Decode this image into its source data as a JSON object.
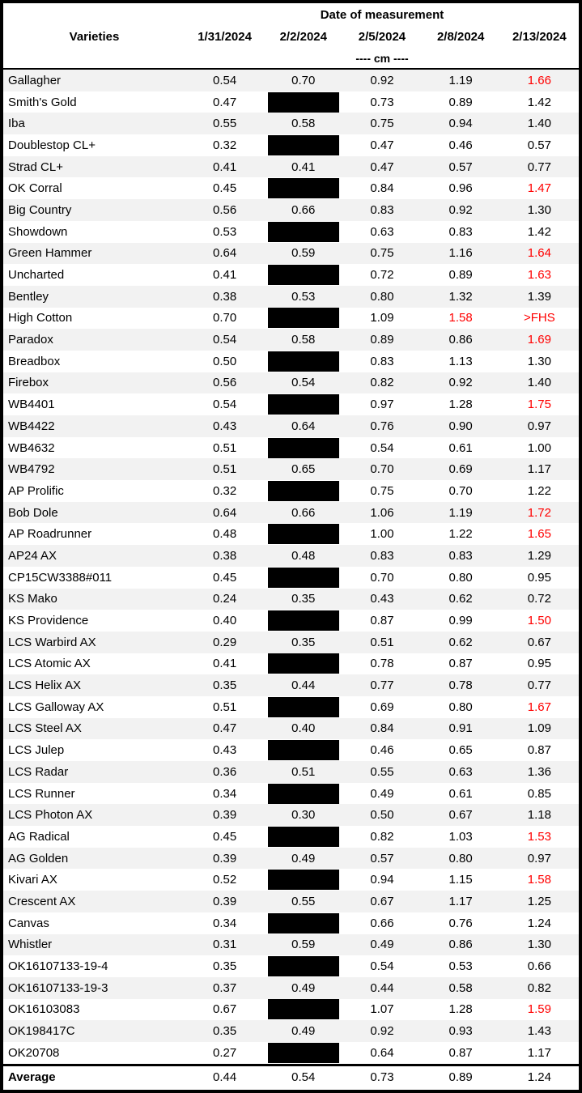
{
  "header": {
    "varieties_label": "Varieties"
  },
  "colors": {
    "red": "#ff0000",
    "stripe": "#f2f2f2",
    "border": "#000000",
    "redaction": "#000000"
  },
  "chart_data": {
    "type": "table",
    "title": "Date of measurement",
    "unit": "---- cm ----",
    "columns": [
      "Varieties",
      "1/31/2024",
      "2/2/2024",
      "2/5/2024",
      "2/8/2024",
      "2/13/2024"
    ],
    "rows": [
      {
        "variety": "Gallagher",
        "values": [
          "0.54",
          "0.70",
          "0.92",
          "1.19",
          "1.66"
        ],
        "red": [
          4
        ],
        "redacted": []
      },
      {
        "variety": "Smith's Gold",
        "values": [
          "0.47",
          null,
          "0.73",
          "0.89",
          "1.42"
        ],
        "red": [],
        "redacted": [
          1
        ]
      },
      {
        "variety": "Iba",
        "values": [
          "0.55",
          "0.58",
          "0.75",
          "0.94",
          "1.40"
        ],
        "red": [],
        "redacted": []
      },
      {
        "variety": "Doublestop CL+",
        "values": [
          "0.32",
          null,
          "0.47",
          "0.46",
          "0.57"
        ],
        "red": [],
        "redacted": [
          1
        ]
      },
      {
        "variety": "Strad CL+",
        "values": [
          "0.41",
          "0.41",
          "0.47",
          "0.57",
          "0.77"
        ],
        "red": [],
        "redacted": []
      },
      {
        "variety": "OK Corral",
        "values": [
          "0.45",
          null,
          "0.84",
          "0.96",
          "1.47"
        ],
        "red": [
          4
        ],
        "redacted": [
          1
        ]
      },
      {
        "variety": "Big Country",
        "values": [
          "0.56",
          "0.66",
          "0.83",
          "0.92",
          "1.30"
        ],
        "red": [],
        "redacted": []
      },
      {
        "variety": "Showdown",
        "values": [
          "0.53",
          null,
          "0.63",
          "0.83",
          "1.42"
        ],
        "red": [],
        "redacted": [
          1
        ]
      },
      {
        "variety": "Green Hammer",
        "values": [
          "0.64",
          "0.59",
          "0.75",
          "1.16",
          "1.64"
        ],
        "red": [
          4
        ],
        "redacted": []
      },
      {
        "variety": "Uncharted",
        "values": [
          "0.41",
          null,
          "0.72",
          "0.89",
          "1.63"
        ],
        "red": [
          4
        ],
        "redacted": [
          1
        ]
      },
      {
        "variety": "Bentley",
        "values": [
          "0.38",
          "0.53",
          "0.80",
          "1.32",
          "1.39"
        ],
        "red": [],
        "redacted": []
      },
      {
        "variety": "High Cotton",
        "values": [
          "0.70",
          null,
          "1.09",
          "1.58",
          ">FHS"
        ],
        "red": [
          3,
          4
        ],
        "redacted": [
          1
        ]
      },
      {
        "variety": "Paradox",
        "values": [
          "0.54",
          "0.58",
          "0.89",
          "0.86",
          "1.69"
        ],
        "red": [
          4
        ],
        "redacted": []
      },
      {
        "variety": "Breadbox",
        "values": [
          "0.50",
          null,
          "0.83",
          "1.13",
          "1.30"
        ],
        "red": [],
        "redacted": [
          1
        ]
      },
      {
        "variety": "Firebox",
        "values": [
          "0.56",
          "0.54",
          "0.82",
          "0.92",
          "1.40"
        ],
        "red": [],
        "redacted": []
      },
      {
        "variety": "WB4401",
        "values": [
          "0.54",
          null,
          "0.97",
          "1.28",
          "1.75"
        ],
        "red": [
          4
        ],
        "redacted": [
          1
        ]
      },
      {
        "variety": "WB4422",
        "values": [
          "0.43",
          "0.64",
          "0.76",
          "0.90",
          "0.97"
        ],
        "red": [],
        "redacted": []
      },
      {
        "variety": "WB4632",
        "values": [
          "0.51",
          null,
          "0.54",
          "0.61",
          "1.00"
        ],
        "red": [],
        "redacted": [
          1
        ]
      },
      {
        "variety": "WB4792",
        "values": [
          "0.51",
          "0.65",
          "0.70",
          "0.69",
          "1.17"
        ],
        "red": [],
        "redacted": []
      },
      {
        "variety": "AP Prolific",
        "values": [
          "0.32",
          null,
          "0.75",
          "0.70",
          "1.22"
        ],
        "red": [],
        "redacted": [
          1
        ]
      },
      {
        "variety": "Bob Dole",
        "values": [
          "0.64",
          "0.66",
          "1.06",
          "1.19",
          "1.72"
        ],
        "red": [
          4
        ],
        "redacted": []
      },
      {
        "variety": "AP Roadrunner",
        "values": [
          "0.48",
          null,
          "1.00",
          "1.22",
          "1.65"
        ],
        "red": [
          4
        ],
        "redacted": [
          1
        ]
      },
      {
        "variety": "AP24 AX",
        "values": [
          "0.38",
          "0.48",
          "0.83",
          "0.83",
          "1.29"
        ],
        "red": [],
        "redacted": []
      },
      {
        "variety": "CP15CW3388#011",
        "values": [
          "0.45",
          null,
          "0.70",
          "0.80",
          "0.95"
        ],
        "red": [],
        "redacted": [
          1
        ]
      },
      {
        "variety": "KS Mako",
        "values": [
          "0.24",
          "0.35",
          "0.43",
          "0.62",
          "0.72"
        ],
        "red": [],
        "redacted": []
      },
      {
        "variety": "KS Providence",
        "values": [
          "0.40",
          null,
          "0.87",
          "0.99",
          "1.50"
        ],
        "red": [
          4
        ],
        "redacted": [
          1
        ]
      },
      {
        "variety": "LCS Warbird AX",
        "values": [
          "0.29",
          "0.35",
          "0.51",
          "0.62",
          "0.67"
        ],
        "red": [],
        "redacted": []
      },
      {
        "variety": "LCS Atomic AX",
        "values": [
          "0.41",
          null,
          "0.78",
          "0.87",
          "0.95"
        ],
        "red": [],
        "redacted": [
          1
        ]
      },
      {
        "variety": "LCS Helix AX",
        "values": [
          "0.35",
          "0.44",
          "0.77",
          "0.78",
          "0.77"
        ],
        "red": [],
        "redacted": []
      },
      {
        "variety": "LCS Galloway AX",
        "values": [
          "0.51",
          null,
          "0.69",
          "0.80",
          "1.67"
        ],
        "red": [
          4
        ],
        "redacted": [
          1
        ]
      },
      {
        "variety": "LCS Steel AX",
        "values": [
          "0.47",
          "0.40",
          "0.84",
          "0.91",
          "1.09"
        ],
        "red": [],
        "redacted": []
      },
      {
        "variety": "LCS Julep",
        "values": [
          "0.43",
          null,
          "0.46",
          "0.65",
          "0.87"
        ],
        "red": [],
        "redacted": [
          1
        ]
      },
      {
        "variety": "LCS Radar",
        "values": [
          "0.36",
          "0.51",
          "0.55",
          "0.63",
          "1.36"
        ],
        "red": [],
        "redacted": []
      },
      {
        "variety": "LCS Runner",
        "values": [
          "0.34",
          null,
          "0.49",
          "0.61",
          "0.85"
        ],
        "red": [],
        "redacted": [
          1
        ]
      },
      {
        "variety": "LCS Photon AX",
        "values": [
          "0.39",
          "0.30",
          "0.50",
          "0.67",
          "1.18"
        ],
        "red": [],
        "redacted": []
      },
      {
        "variety": "AG Radical",
        "values": [
          "0.45",
          null,
          "0.82",
          "1.03",
          "1.53"
        ],
        "red": [
          4
        ],
        "redacted": [
          1
        ]
      },
      {
        "variety": "AG Golden",
        "values": [
          "0.39",
          "0.49",
          "0.57",
          "0.80",
          "0.97"
        ],
        "red": [],
        "redacted": []
      },
      {
        "variety": "Kivari AX",
        "values": [
          "0.52",
          null,
          "0.94",
          "1.15",
          "1.58"
        ],
        "red": [
          4
        ],
        "redacted": [
          1
        ]
      },
      {
        "variety": "Crescent AX",
        "values": [
          "0.39",
          "0.55",
          "0.67",
          "1.17",
          "1.25"
        ],
        "red": [],
        "redacted": []
      },
      {
        "variety": "Canvas",
        "values": [
          "0.34",
          null,
          "0.66",
          "0.76",
          "1.24"
        ],
        "red": [],
        "redacted": [
          1
        ]
      },
      {
        "variety": "Whistler",
        "values": [
          "0.31",
          "0.59",
          "0.49",
          "0.86",
          "1.30"
        ],
        "red": [],
        "redacted": []
      },
      {
        "variety": "OK16107133-19-4",
        "values": [
          "0.35",
          null,
          "0.54",
          "0.53",
          "0.66"
        ],
        "red": [],
        "redacted": [
          1
        ]
      },
      {
        "variety": "OK16107133-19-3",
        "values": [
          "0.37",
          "0.49",
          "0.44",
          "0.58",
          "0.82"
        ],
        "red": [],
        "redacted": []
      },
      {
        "variety": "OK16103083",
        "values": [
          "0.67",
          null,
          "1.07",
          "1.28",
          "1.59"
        ],
        "red": [
          4
        ],
        "redacted": [
          1
        ]
      },
      {
        "variety": "OK198417C",
        "values": [
          "0.35",
          "0.49",
          "0.92",
          "0.93",
          "1.43"
        ],
        "red": [],
        "redacted": []
      },
      {
        "variety": "OK20708",
        "values": [
          "0.27",
          null,
          "0.64",
          "0.87",
          "1.17"
        ],
        "red": [],
        "redacted": [
          1
        ]
      }
    ],
    "average": {
      "label": "Average",
      "values": [
        "0.44",
        "0.54",
        "0.73",
        "0.89",
        "1.24"
      ]
    }
  }
}
